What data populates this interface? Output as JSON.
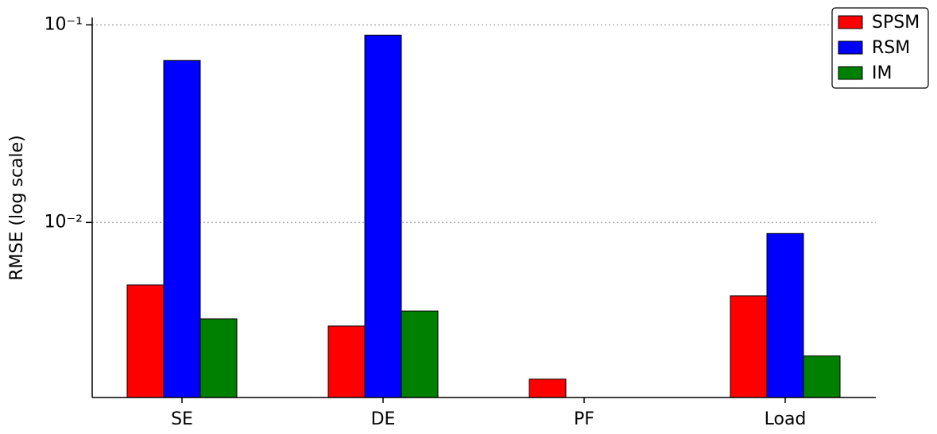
{
  "chart_data": {
    "type": "bar",
    "y_label": "RMSE (log scale)",
    "log_scale": true,
    "grid": true,
    "legend_position": "upper right",
    "categories": [
      "SE",
      "DE",
      "PF",
      "Load"
    ],
    "series": [
      {
        "name": "SPSM",
        "color": "#ff0000",
        "values": [
          0.00483,
          0.00299,
          0.00161,
          0.00425
        ]
      },
      {
        "name": "RSM",
        "color": "#0000ff",
        "values": [
          0.066,
          0.0887,
          null,
          0.00879
        ]
      },
      {
        "name": "IM",
        "color": "#008000",
        "values": [
          0.00325,
          0.00356,
          null,
          0.00211
        ]
      }
    ],
    "ylim": [
      0.0013,
      0.109
    ],
    "yticks": [
      {
        "value": 0.01,
        "label": "10⁻²"
      },
      {
        "value": 0.1,
        "label": "10⁻¹"
      }
    ]
  }
}
